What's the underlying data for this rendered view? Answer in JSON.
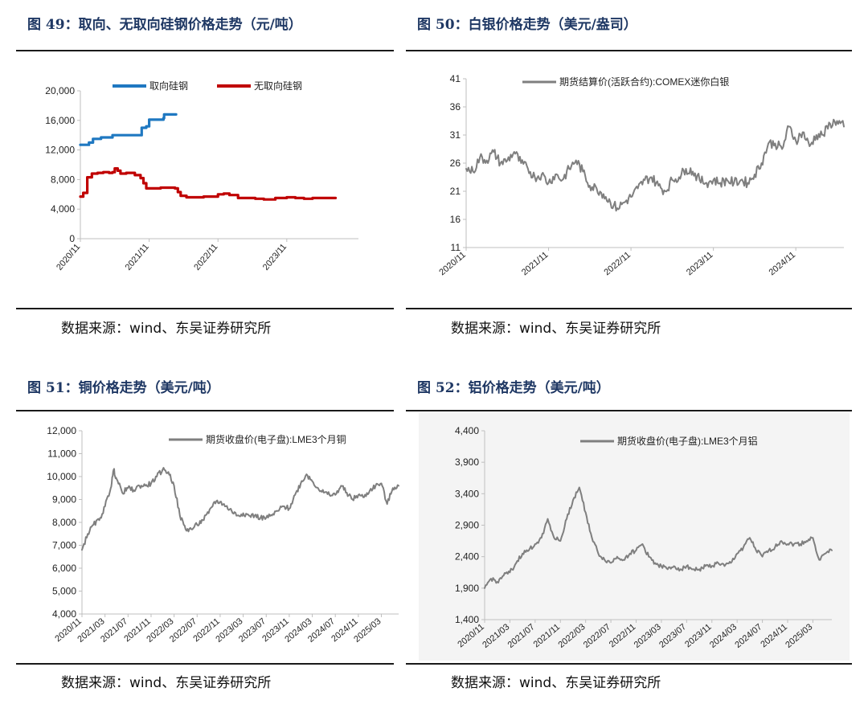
{
  "source_label": "数据来源：wind、东吴证券研究所",
  "chart_data": [
    {
      "id": "fig49",
      "type": "line",
      "title": "图 49：取向、无取向硅钢价格走势（元/吨）",
      "xlabel": "",
      "ylabel": "",
      "ylim": [
        0,
        20000
      ],
      "yticks": [
        0,
        4000,
        8000,
        12000,
        16000,
        20000
      ],
      "ytick_labels": [
        "0",
        "4,000",
        "8,000",
        "12,000",
        "16,000",
        "20,000"
      ],
      "x_start": "2020-11",
      "xlim_months": [
        0,
        48.5
      ],
      "xticks": [
        "2020/11",
        "2021/11",
        "2022/11",
        "2023/11"
      ],
      "grid": false,
      "legend_position": "top",
      "step": true,
      "series": [
        {
          "name": "取向硅钢",
          "color": "#1f78c1",
          "points": [
            [
              0,
              12700
            ],
            [
              0.8,
              12700
            ],
            [
              1.5,
              13000
            ],
            [
              2.2,
              13500
            ],
            [
              3.6,
              13700
            ],
            [
              5.6,
              14000
            ],
            [
              7.2,
              14000
            ],
            [
              8.8,
              14000
            ],
            [
              10.5,
              14000
            ],
            [
              10.7,
              15000
            ],
            [
              11.5,
              15200
            ],
            [
              12.0,
              16100
            ],
            [
              13.0,
              16100
            ],
            [
              14.5,
              16300
            ],
            [
              14.6,
              16800
            ],
            [
              15.5,
              16800
            ],
            [
              16.7,
              16800
            ]
          ]
        },
        {
          "name": "无取向硅钢",
          "color": "#c00000",
          "points": [
            [
              0,
              5700
            ],
            [
              0.5,
              6200
            ],
            [
              1.2,
              8300
            ],
            [
              2.0,
              8800
            ],
            [
              3.0,
              8900
            ],
            [
              4.0,
              9000
            ],
            [
              5.0,
              8900
            ],
            [
              5.6,
              9000
            ],
            [
              6.0,
              9500
            ],
            [
              6.5,
              9200
            ],
            [
              7.0,
              8800
            ],
            [
              8.0,
              8900
            ],
            [
              9.5,
              8600
            ],
            [
              10.5,
              8200
            ],
            [
              11.0,
              7500
            ],
            [
              11.5,
              6800
            ],
            [
              12.5,
              6800
            ],
            [
              14.0,
              6900
            ],
            [
              15.5,
              6900
            ],
            [
              16.5,
              6800
            ],
            [
              17.0,
              6300
            ],
            [
              17.5,
              5800
            ],
            [
              18.5,
              5600
            ],
            [
              20.0,
              5600
            ],
            [
              21.5,
              5700
            ],
            [
              22.5,
              5700
            ],
            [
              24.0,
              6000
            ],
            [
              25.0,
              6100
            ],
            [
              26.0,
              5900
            ],
            [
              27.5,
              5500
            ],
            [
              29.0,
              5500
            ],
            [
              30.5,
              5400
            ],
            [
              32.0,
              5300
            ],
            [
              34.0,
              5500
            ],
            [
              36.0,
              5600
            ],
            [
              37.5,
              5500
            ],
            [
              39.0,
              5400
            ],
            [
              40.5,
              5500
            ],
            [
              42.0,
              5500
            ],
            [
              43.5,
              5500
            ],
            [
              44.5,
              5500
            ]
          ]
        }
      ]
    },
    {
      "id": "fig50",
      "type": "line",
      "title": "图 50：白银价格走势（美元/盎司）",
      "xlabel": "",
      "ylabel": "",
      "ylim": [
        11,
        41
      ],
      "yticks": [
        11,
        16,
        21,
        26,
        31,
        36,
        41
      ],
      "ytick_labels": [
        "11",
        "16",
        "21",
        "26",
        "31",
        "36",
        "41"
      ],
      "x_start": "2020-11",
      "xlim_months": [
        0,
        55
      ],
      "xticks": [
        "2020/11",
        "2021/11",
        "2022/11",
        "2023/11",
        "2024/11"
      ],
      "grid": false,
      "legend_position": "top",
      "series": [
        {
          "name": "期货结算价(活跃合约):COMEX迷你白银",
          "color": "#7f7f7f",
          "points": [
            [
              0,
              25
            ],
            [
              1,
              24.5
            ],
            [
              2,
              27
            ],
            [
              3,
              26.5
            ],
            [
              4,
              28
            ],
            [
              5,
              26
            ],
            [
              6,
              26.5
            ],
            [
              7,
              28
            ],
            [
              8,
              26
            ],
            [
              9,
              25
            ],
            [
              10,
              23.5
            ],
            [
              11,
              24
            ],
            [
              12,
              22.5
            ],
            [
              13,
              24
            ],
            [
              14,
              23
            ],
            [
              15,
              25
            ],
            [
              16,
              26.5
            ],
            [
              17,
              24.5
            ],
            [
              18,
              22
            ],
            [
              19,
              21.5
            ],
            [
              20,
              20.5
            ],
            [
              21,
              19
            ],
            [
              22,
              18
            ],
            [
              23,
              19
            ],
            [
              24,
              20
            ],
            [
              25,
              21.5
            ],
            [
              26,
              23
            ],
            [
              27,
              23.5
            ],
            [
              28,
              22
            ],
            [
              29,
              21
            ],
            [
              30,
              23
            ],
            [
              31,
              23.5
            ],
            [
              32,
              25
            ],
            [
              33,
              24.5
            ],
            [
              34,
              23
            ],
            [
              35,
              22.5
            ],
            [
              36,
              23
            ],
            [
              37,
              22.5
            ],
            [
              38,
              23
            ],
            [
              39,
              22.5
            ],
            [
              40,
              23
            ],
            [
              41,
              22.5
            ],
            [
              42,
              24
            ],
            [
              43,
              26
            ],
            [
              44,
              29.5
            ],
            [
              45,
              29.5
            ],
            [
              46,
              28.5
            ],
            [
              47,
              32.5
            ],
            [
              48,
              30
            ],
            [
              49,
              31.5
            ],
            [
              50,
              29
            ],
            [
              51,
              31
            ],
            [
              52,
              31
            ],
            [
              53,
              33
            ],
            [
              54,
              33.5
            ],
            [
              55,
              32.5
            ]
          ]
        }
      ]
    },
    {
      "id": "fig51",
      "type": "line",
      "title": "图 51：铜价格走势（美元/吨）",
      "xlabel": "",
      "ylabel": "",
      "ylim": [
        4000,
        12000
      ],
      "yticks": [
        4000,
        5000,
        6000,
        7000,
        8000,
        9000,
        10000,
        11000,
        12000
      ],
      "ytick_labels": [
        "4,000",
        "5,000",
        "6,000",
        "7,000",
        "8,000",
        "9,000",
        "10,000",
        "11,000",
        "12,000"
      ],
      "x_start": "2020-11",
      "xlim_months": [
        0,
        55
      ],
      "xticks": [
        "2020/11",
        "2021/03",
        "2021/07",
        "2021/11",
        "2022/03",
        "2022/07",
        "2022/11",
        "2023/03",
        "2023/07",
        "2023/11",
        "2024/03",
        "2024/07",
        "2024/11",
        "2025/03"
      ],
      "grid": false,
      "legend_position": "top",
      "series": [
        {
          "name": "期货收盘价(电子盘):LME3个月铜",
          "color": "#7f7f7f",
          "points": [
            [
              0,
              6800
            ],
            [
              1,
              7500
            ],
            [
              2,
              7900
            ],
            [
              3,
              8100
            ],
            [
              4,
              8700
            ],
            [
              5,
              9500
            ],
            [
              5.5,
              10300
            ],
            [
              6,
              9900
            ],
            [
              7,
              9300
            ],
            [
              8,
              9500
            ],
            [
              9,
              9400
            ],
            [
              10,
              9600
            ],
            [
              11,
              9600
            ],
            [
              12,
              9700
            ],
            [
              13,
              10000
            ],
            [
              14,
              10300
            ],
            [
              15,
              10200
            ],
            [
              16,
              9600
            ],
            [
              17,
              8300
            ],
            [
              18,
              7700
            ],
            [
              19,
              7700
            ],
            [
              20,
              7900
            ],
            [
              21,
              8100
            ],
            [
              22,
              8400
            ],
            [
              23,
              8900
            ],
            [
              24,
              8900
            ],
            [
              25,
              8700
            ],
            [
              26,
              8500
            ],
            [
              27,
              8300
            ],
            [
              28,
              8400
            ],
            [
              29,
              8300
            ],
            [
              30,
              8300
            ],
            [
              31,
              8200
            ],
            [
              32,
              8200
            ],
            [
              33,
              8300
            ],
            [
              34,
              8500
            ],
            [
              35,
              8700
            ],
            [
              36,
              8600
            ],
            [
              37,
              9200
            ],
            [
              38,
              9700
            ],
            [
              39,
              10100
            ],
            [
              40,
              9800
            ],
            [
              41,
              9500
            ],
            [
              42,
              9300
            ],
            [
              43,
              9200
            ],
            [
              44,
              9200
            ],
            [
              45,
              9600
            ],
            [
              46,
              9300
            ],
            [
              47,
              9000
            ],
            [
              48,
              9200
            ],
            [
              49,
              9100
            ],
            [
              50,
              9400
            ],
            [
              51,
              9600
            ],
            [
              52,
              9700
            ],
            [
              53,
              8800
            ],
            [
              54,
              9500
            ],
            [
              55,
              9600
            ]
          ]
        }
      ]
    },
    {
      "id": "fig52",
      "type": "line",
      "title": "图 52：铝价格走势（美元/吨）",
      "xlabel": "",
      "ylabel": "",
      "ylim": [
        1400,
        4400
      ],
      "yticks": [
        1400,
        1900,
        2400,
        2900,
        3400,
        3900,
        4400
      ],
      "ytick_labels": [
        "1,400",
        "1,900",
        "2,400",
        "2,900",
        "3,400",
        "3,900",
        "4,400"
      ],
      "x_start": "2020-11",
      "xlim_months": [
        0,
        55
      ],
      "xticks": [
        "2020/11",
        "2021/03",
        "2021/07",
        "2021/11",
        "2022/03",
        "2022/07",
        "2022/11",
        "2023/03",
        "2023/07",
        "2023/11",
        "2024/03",
        "2024/07",
        "2024/11",
        "2025/03"
      ],
      "grid": false,
      "legend_position": "top",
      "series": [
        {
          "name": "期货收盘价(电子盘):LME3个月铝",
          "color": "#7f7f7f",
          "points": [
            [
              0,
              1900
            ],
            [
              1,
              2050
            ],
            [
              2,
              2000
            ],
            [
              3,
              2100
            ],
            [
              4,
              2150
            ],
            [
              5,
              2300
            ],
            [
              6,
              2450
            ],
            [
              7,
              2500
            ],
            [
              8,
              2600
            ],
            [
              9,
              2700
            ],
            [
              10,
              3000
            ],
            [
              11,
              2700
            ],
            [
              12,
              2650
            ],
            [
              13,
              3000
            ],
            [
              14,
              3300
            ],
            [
              15,
              3500
            ],
            [
              16,
              3100
            ],
            [
              17,
              2700
            ],
            [
              18,
              2450
            ],
            [
              19,
              2350
            ],
            [
              20,
              2300
            ],
            [
              21,
              2400
            ],
            [
              22,
              2350
            ],
            [
              23,
              2450
            ],
            [
              24,
              2500
            ],
            [
              25,
              2600
            ],
            [
              26,
              2400
            ],
            [
              27,
              2300
            ],
            [
              28,
              2250
            ],
            [
              29,
              2200
            ],
            [
              30,
              2250
            ],
            [
              31,
              2200
            ],
            [
              32,
              2250
            ],
            [
              33,
              2200
            ],
            [
              34,
              2200
            ],
            [
              35,
              2250
            ],
            [
              36,
              2250
            ],
            [
              37,
              2300
            ],
            [
              38,
              2250
            ],
            [
              39,
              2300
            ],
            [
              40,
              2450
            ],
            [
              41,
              2550
            ],
            [
              42,
              2700
            ],
            [
              43,
              2500
            ],
            [
              44,
              2400
            ],
            [
              45,
              2500
            ],
            [
              46,
              2550
            ],
            [
              47,
              2650
            ],
            [
              48,
              2600
            ],
            [
              49,
              2600
            ],
            [
              50,
              2600
            ],
            [
              51,
              2650
            ],
            [
              52,
              2700
            ],
            [
              53,
              2350
            ],
            [
              54,
              2450
            ],
            [
              55,
              2500
            ]
          ]
        }
      ]
    }
  ]
}
